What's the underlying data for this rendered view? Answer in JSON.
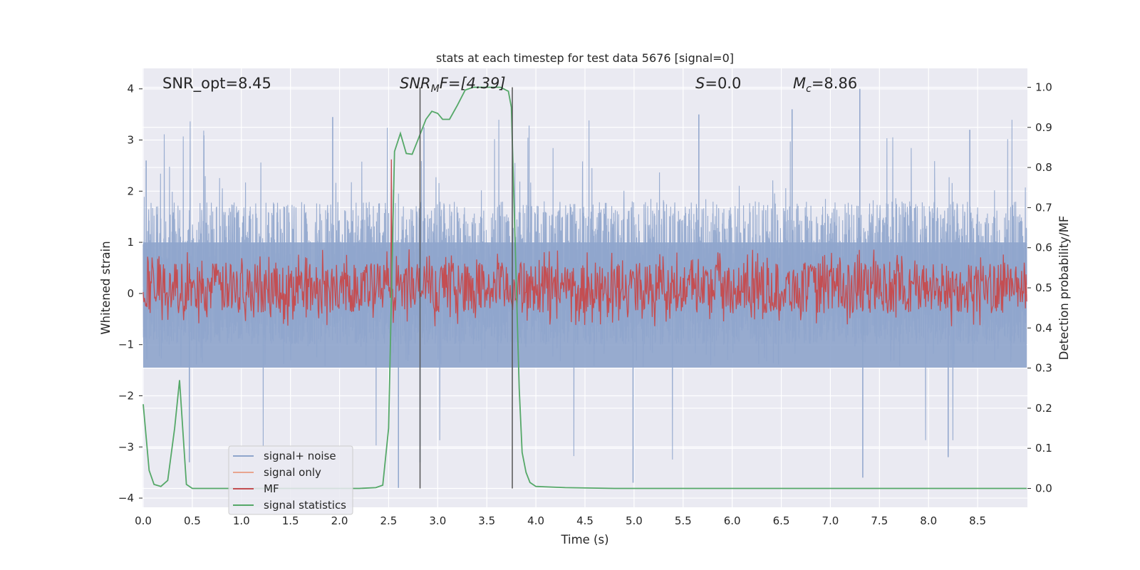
{
  "chart_data": {
    "type": "line",
    "title": "stats at each timestep for test data 5676 [signal=0]",
    "xlabel": "Time (s)",
    "ylabel": "Whitened strain",
    "y2label": "Detection probability/MF",
    "xlim": [
      0,
      9.0
    ],
    "ylim": [
      -4.18,
      4.4
    ],
    "y2lim": [
      -0.047,
      1.047
    ],
    "xticks": [
      0.0,
      0.5,
      1.0,
      1.5,
      2.0,
      2.5,
      3.0,
      3.5,
      4.0,
      4.5,
      5.0,
      5.5,
      6.0,
      6.5,
      7.0,
      7.5,
      8.0,
      8.5
    ],
    "xtick_labels": [
      "0.0",
      "0.5",
      "1.0",
      "1.5",
      "2.0",
      "2.5",
      "3.0",
      "3.5",
      "4.0",
      "4.5",
      "5.0",
      "5.5",
      "6.0",
      "6.5",
      "7.0",
      "7.5",
      "8.0",
      "8.5"
    ],
    "yticks": [
      -4,
      -3,
      -2,
      -1,
      0,
      1,
      2,
      3,
      4
    ],
    "ytick_labels": [
      "−4",
      "−3",
      "−2",
      "−1",
      "0",
      "1",
      "2",
      "3",
      "4"
    ],
    "y2ticks": [
      0.0,
      0.1,
      0.2,
      0.3,
      0.4,
      0.5,
      0.6,
      0.7,
      0.8,
      0.9,
      1.0
    ],
    "y2tick_labels": [
      "0.0",
      "0.1",
      "0.2",
      "0.3",
      "0.4",
      "0.5",
      "0.6",
      "0.7",
      "0.8",
      "0.9",
      "1.0"
    ],
    "grid": true,
    "legend_position": "lower-left",
    "annotations": {
      "snr_opt": "SNR_opt=8.45",
      "snr_mf_symbol": "SNR",
      "snr_mf_sub": "M",
      "snr_mf_rest": "F=[4.39]",
      "s_symbol": "S",
      "s_rest": "=0.0",
      "mc_symbol": "M",
      "mc_sub": "c",
      "mc_rest": "=8.86"
    },
    "vlines": [
      2.82,
      3.76
    ],
    "noise_approx": {
      "n_samples": 4500,
      "p10_abs": [
        0.1,
        1.7
      ],
      "extreme_peaks": [
        [
          0.03,
          2.6
        ],
        [
          1.93,
          3.45
        ],
        [
          2.86,
          3.25
        ],
        [
          5.66,
          3.5
        ],
        [
          6.61,
          3.6
        ],
        [
          7.3,
          4.0
        ],
        [
          8.42,
          3.2
        ],
        [
          0.47,
          -3.3
        ],
        [
          2.6,
          -3.8
        ],
        [
          2.82,
          -3.3
        ],
        [
          4.99,
          -3.7
        ],
        [
          7.33,
          -3.6
        ],
        [
          8.2,
          -3.2
        ]
      ]
    },
    "mf_approx": {
      "base": 0.58,
      "spread": 0.08,
      "max": 0.9
    },
    "series": [
      {
        "name": "signal+ noise",
        "color": "#8fa5cc",
        "style": "noise"
      },
      {
        "name": "signal only",
        "color": "#e8a58f",
        "style": "empty"
      },
      {
        "name": "MF",
        "color": "#c44e52",
        "style": "mf"
      },
      {
        "name": "signal statistics",
        "color": "#55a868",
        "style": "line",
        "x": [
          0.0,
          0.06,
          0.11,
          0.18,
          0.25,
          0.32,
          0.37,
          0.44,
          0.5,
          2.2,
          2.37,
          2.44,
          2.5,
          2.53,
          2.56,
          2.62,
          2.68,
          2.74,
          2.8,
          2.88,
          2.94,
          3.0,
          3.05,
          3.12,
          3.2,
          3.28,
          3.36,
          3.45,
          3.55,
          3.64,
          3.72,
          3.75,
          3.79,
          3.83,
          3.86,
          3.9,
          3.94,
          4.0,
          4.3,
          4.8,
          9.0
        ],
        "y": [
          0.21,
          0.045,
          0.01,
          0.005,
          0.02,
          0.15,
          0.27,
          0.01,
          0.0,
          0.0,
          0.002,
          0.008,
          0.15,
          0.5,
          0.84,
          0.885,
          0.835,
          0.833,
          0.87,
          0.92,
          0.94,
          0.935,
          0.92,
          0.92,
          0.955,
          0.993,
          1.0,
          1.0,
          1.0,
          1.0,
          0.99,
          0.95,
          0.6,
          0.25,
          0.09,
          0.04,
          0.015,
          0.005,
          0.002,
          0.0,
          0.0
        ]
      }
    ]
  }
}
